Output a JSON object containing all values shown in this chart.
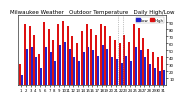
{
  "title": "Milwaukee Weather   Outdoor Temperature   Daily High/Low",
  "background_color": "#ffffff",
  "high_color": "#dd1111",
  "low_color": "#2222cc",
  "legend_high": "High",
  "legend_low": "Low",
  "ylim": [
    0,
    100
  ],
  "ytick_vals": [
    10,
    20,
    30,
    40,
    50,
    60,
    70,
    80,
    90
  ],
  "days": [
    "1",
    "2",
    "3",
    "4",
    "5",
    "6",
    "7",
    "8",
    "9",
    "10",
    "11",
    "12",
    "13",
    "14",
    "15",
    "16",
    "17",
    "18",
    "19",
    "20",
    "21",
    "22",
    "23",
    "24",
    "25",
    "26",
    "27",
    "28",
    "29",
    "30",
    "31"
  ],
  "highs": [
    30,
    88,
    85,
    72,
    45,
    90,
    80,
    65,
    88,
    92,
    85,
    70,
    60,
    78,
    88,
    80,
    72,
    88,
    85,
    70,
    65,
    60,
    72,
    62,
    88,
    82,
    68,
    52,
    48,
    40,
    42
  ],
  "lows": [
    15,
    52,
    55,
    40,
    25,
    55,
    48,
    35,
    58,
    62,
    52,
    40,
    35,
    48,
    55,
    50,
    42,
    58,
    52,
    40,
    38,
    32,
    42,
    35,
    55,
    50,
    40,
    30,
    25,
    20,
    22
  ],
  "vline_pos": [
    20.5,
    21.5
  ],
  "title_fontsize": 4.0,
  "tick_fontsize": 2.8,
  "legend_fontsize": 2.8
}
